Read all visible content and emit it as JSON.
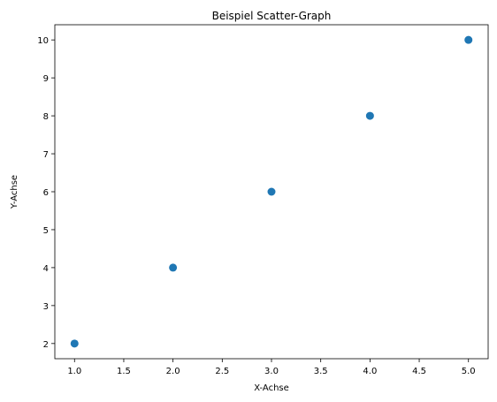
{
  "chart_data": {
    "type": "scatter",
    "title": "Beispiel Scatter-Graph",
    "xlabel": "X-Achse",
    "ylabel": "Y-Achse",
    "x": [
      1,
      2,
      3,
      4,
      5
    ],
    "y": [
      2,
      4,
      6,
      8,
      10
    ],
    "xlim": [
      0.8,
      5.2
    ],
    "ylim": [
      1.6,
      10.4
    ],
    "xticks": [
      1.0,
      1.5,
      2.0,
      2.5,
      3.0,
      3.5,
      4.0,
      4.5,
      5.0
    ],
    "xtick_labels": [
      "1.0",
      "1.5",
      "2.0",
      "2.5",
      "3.0",
      "3.5",
      "4.0",
      "4.5",
      "5.0"
    ],
    "yticks": [
      2,
      3,
      4,
      5,
      6,
      7,
      8,
      9,
      10
    ],
    "ytick_labels": [
      "2",
      "3",
      "4",
      "5",
      "6",
      "7",
      "8",
      "9",
      "10"
    ],
    "grid": false,
    "legend": "none",
    "marker_color": "#1f77b4"
  }
}
